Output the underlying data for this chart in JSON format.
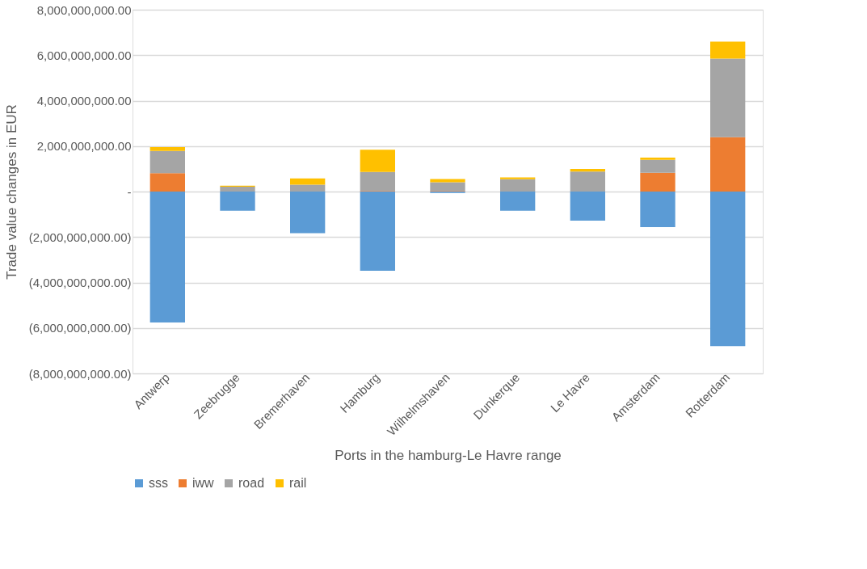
{
  "chart_data": {
    "type": "bar",
    "stacked": true,
    "xlabel": "Ports in the hamburg-Le Havre range",
    "ylabel": "Trade value changes in EUR",
    "categories": [
      "Antwerp",
      "Zeebrugge",
      "Bremerhaven",
      "Hamburg",
      "Wilhelmshaven",
      "Dunkerque",
      "Le Havre",
      "Amsterdam",
      "Rotterdam"
    ],
    "series": [
      {
        "name": "sss",
        "color": "#5b9bd5",
        "values": [
          -5760000000,
          -840000000,
          -1830000000,
          -3480000000,
          -60000000,
          -840000000,
          -1280000000,
          -1560000000,
          -6800000000
        ]
      },
      {
        "name": "iww",
        "color": "#ed7d31",
        "values": [
          810000000,
          null,
          null,
          30000000,
          30000000,
          null,
          null,
          830000000,
          2390000000
        ]
      },
      {
        "name": "road",
        "color": "#a5a5a5",
        "values": [
          980000000,
          210000000,
          300000000,
          830000000,
          380000000,
          540000000,
          880000000,
          570000000,
          3460000000
        ]
      },
      {
        "name": "rail",
        "color": "#ffc000",
        "values": [
          170000000,
          50000000,
          280000000,
          980000000,
          140000000,
          80000000,
          120000000,
          90000000,
          750000000
        ]
      }
    ],
    "ylim": [
      -8000000000,
      8000000000
    ],
    "yticks": [
      {
        "value": -8000000000,
        "label": "(8,000,000,000.00)"
      },
      {
        "value": -6000000000,
        "label": "(6,000,000,000.00)"
      },
      {
        "value": -4000000000,
        "label": "(4,000,000,000.00)"
      },
      {
        "value": -2000000000,
        "label": "(2,000,000,000.00)"
      },
      {
        "value": 0,
        "label": "-"
      },
      {
        "value": 2000000000,
        "label": "2,000,000,000.00"
      },
      {
        "value": 4000000000,
        "label": "4,000,000,000.00"
      },
      {
        "value": 6000000000,
        "label": "6,000,000,000.00"
      },
      {
        "value": 8000000000,
        "label": "8,000,000,000.00"
      }
    ],
    "grid": "y",
    "legend": "bottom"
  }
}
